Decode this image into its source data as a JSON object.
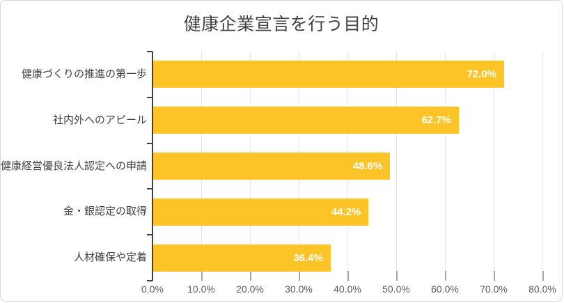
{
  "colors": {
    "background": "#FFFFFF",
    "frame_border": "#D6D6D6",
    "bar": "#FDC428",
    "bar_value_text": "#FFFFFF",
    "title_text": "#404040",
    "category_text": "#404040",
    "x_tick_text": "#595959",
    "axis_line": "#404040",
    "gridline": "#E4E4E4",
    "tick_mark": "#A6A6A6"
  },
  "chart_data": {
    "type": "bar",
    "orientation": "horizontal",
    "title": "健康企業宣言を行う目的",
    "categories": [
      "健康づくりの推進の第一歩",
      "社内外へのアピール",
      "健康経営優良法人認定への申請",
      "金・銀認定の取得",
      "人材確保や定着"
    ],
    "values": [
      72.0,
      62.7,
      48.6,
      44.2,
      36.4
    ],
    "value_labels": [
      "72.0%",
      "62.7%",
      "48.6%",
      "44.2%",
      "36.4%"
    ],
    "xlabel": "",
    "ylabel": "",
    "xlim": [
      0,
      80
    ],
    "x_tick_step": 10,
    "x_tick_labels": [
      "0.0%",
      "10.0%",
      "20.0%",
      "30.0%",
      "40.0%",
      "50.0%",
      "60.0%",
      "70.0%",
      "80.0%"
    ],
    "grid": true,
    "legend": false,
    "bar_label_position": "inside-end"
  }
}
